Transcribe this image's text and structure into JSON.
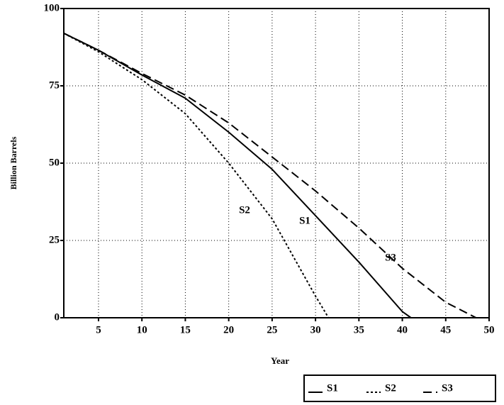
{
  "chart_data": {
    "type": "line",
    "x_label": "Year",
    "y_label": "Billion Barrels",
    "xlim": [
      1,
      50
    ],
    "ylim": [
      0,
      100
    ],
    "xticks": [
      5,
      10,
      15,
      20,
      25,
      30,
      35,
      40,
      45,
      50
    ],
    "yticks": [
      0,
      25,
      50,
      75,
      100
    ],
    "grid": true,
    "legend": "bottom-right",
    "series": [
      {
        "name": "S1",
        "color": "#000000",
        "style": "solid",
        "x": [
          1,
          5,
          10,
          15,
          20,
          25,
          30,
          35,
          40,
          41
        ],
        "values": [
          92,
          86.5,
          78.5,
          71,
          60,
          48,
          33,
          18,
          2,
          0
        ]
      },
      {
        "name": "S2",
        "color": "#000000",
        "style": "dotted",
        "x": [
          1,
          5,
          10,
          15,
          20,
          25,
          30,
          31.5
        ],
        "values": [
          92,
          86,
          77,
          66,
          50,
          32,
          7,
          0
        ]
      },
      {
        "name": "S3",
        "color": "#000000",
        "style": "dashed",
        "x": [
          1,
          5,
          10,
          15,
          20,
          25,
          30,
          35,
          40,
          45,
          48.5
        ],
        "values": [
          92,
          86.5,
          79,
          72,
          63,
          52,
          41,
          29,
          16,
          5,
          0
        ]
      }
    ]
  }
}
